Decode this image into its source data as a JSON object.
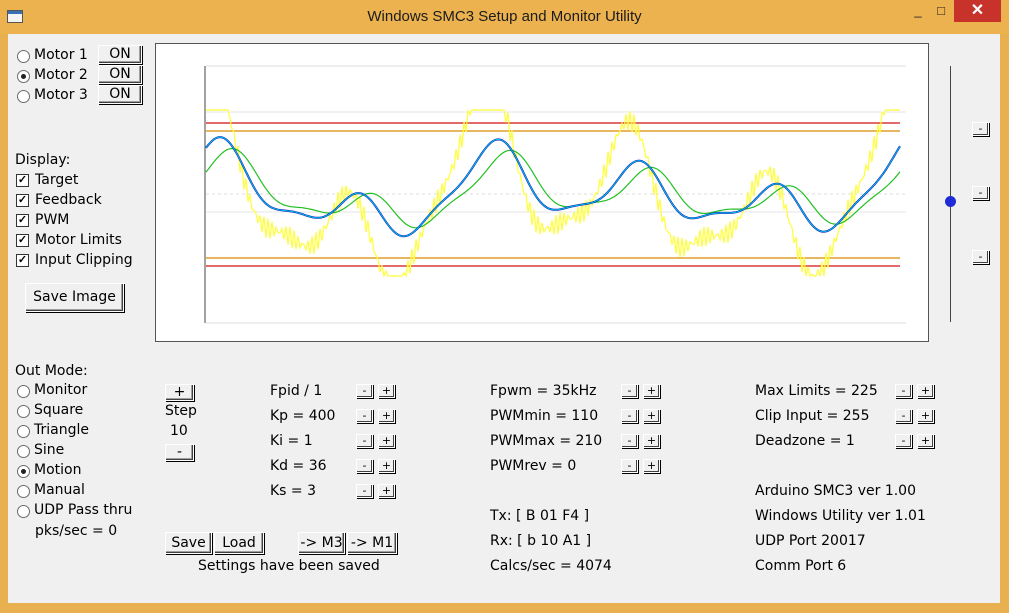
{
  "window": {
    "title": "Windows SMC3 Setup and Monitor Utility",
    "minimize": "_",
    "maximize": "□",
    "close": "✕"
  },
  "motors": [
    {
      "label": "Motor 1",
      "selected": false,
      "button": "ON"
    },
    {
      "label": "Motor 2",
      "selected": true,
      "button": "ON"
    },
    {
      "label": "Motor 3",
      "selected": false,
      "button": "ON"
    }
  ],
  "display": {
    "heading": "Display:",
    "options": [
      {
        "label": "Target",
        "checked": true
      },
      {
        "label": "Feedback",
        "checked": true
      },
      {
        "label": "PWM",
        "checked": true
      },
      {
        "label": "Motor Limits",
        "checked": true
      },
      {
        "label": "Input Clipping",
        "checked": true
      }
    ],
    "save_image": "Save Image"
  },
  "out_mode": {
    "heading": "Out Mode:",
    "options": [
      {
        "label": "Monitor",
        "selected": false
      },
      {
        "label": "Square",
        "selected": false
      },
      {
        "label": "Triangle",
        "selected": false
      },
      {
        "label": "Sine",
        "selected": false
      },
      {
        "label": "Motion",
        "selected": true
      },
      {
        "label": "Manual",
        "selected": false
      },
      {
        "label": "UDP Pass thru",
        "selected": false
      }
    ],
    "pks_sec": "pks/sec = 0"
  },
  "step": {
    "plus": "+",
    "label": "Step",
    "value": "10",
    "minus": "-"
  },
  "pid": [
    "Fpid / 1",
    "Kp = 400",
    "Ki = 1",
    "Kd = 36",
    "Ks = 3"
  ],
  "pwm": [
    "Fpwm = 35kHz",
    "PWMmin = 110",
    "PWMmax = 210",
    "PWMrev = 0"
  ],
  "limits": [
    "Max Limits = 225",
    "Clip Input = 255",
    "Deadzone = 1"
  ],
  "stepper_labels": {
    "minus": "-",
    "plus": "+"
  },
  "comm": {
    "tx": "Tx: [ B 01 F4 ]",
    "rx": "Rx: [ b 10 A1 ]",
    "calcs": "Calcs/sec = 4074"
  },
  "info": {
    "arduino": "Arduino SMC3 ver 1.00",
    "utility": "Windows Utility ver 1.01",
    "udp": "UDP Port 20017",
    "comm_port": "Comm Port 6"
  },
  "buttons": {
    "save": "Save",
    "load": "Load",
    "to_m3": "-> M3",
    "to_m1": "-> M1"
  },
  "status": "Settings have been saved",
  "slider_buttons": [
    "-",
    "-",
    "-"
  ],
  "slider_level": 0.5,
  "colors": {
    "target": "#ffff33",
    "feedback": "#1010c0",
    "feedback_alt": "#00c8e0",
    "pwm": "#22c022",
    "motor_limits": "#d11010",
    "input_clipping": "#d98a00",
    "grid": "#cccccc"
  }
}
